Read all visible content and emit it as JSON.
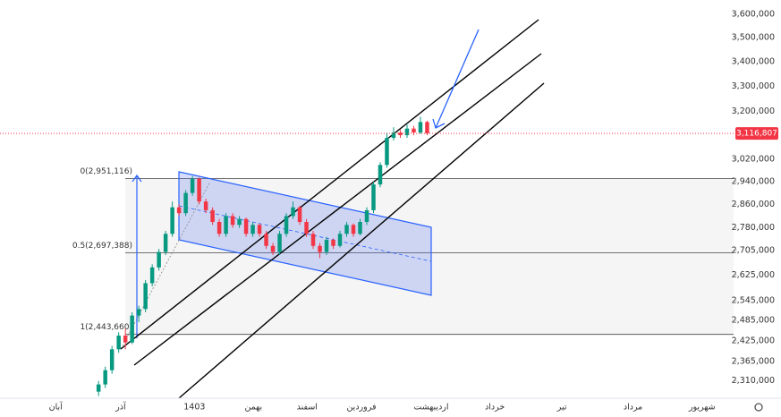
{
  "chart_data": {
    "type": "candlestick",
    "log_scale": true,
    "ylim": [
      2262000,
      3663000
    ],
    "xlim": [
      -14.7,
      94.7
    ],
    "up_color": "#089981",
    "down_color": "#f23645",
    "yticks": [
      {
        "value": 3600000,
        "label": "3,600,000"
      },
      {
        "value": 3500000,
        "label": "3,500,000"
      },
      {
        "value": 3400000,
        "label": "3,400,000"
      },
      {
        "value": 3300000,
        "label": "3,300,000"
      },
      {
        "value": 3200000,
        "label": "3,200,000"
      },
      {
        "value": 3020000,
        "label": "3,020,000"
      },
      {
        "value": 2940000,
        "label": "2,940,000"
      },
      {
        "value": 2860000,
        "label": "2,860,000"
      },
      {
        "value": 2780000,
        "label": "2,780,000"
      },
      {
        "value": 2705000,
        "label": "2,705,000"
      },
      {
        "value": 2625000,
        "label": "2,625,000"
      },
      {
        "value": 2545000,
        "label": "2,545,000"
      },
      {
        "value": 2485000,
        "label": "2,485,000"
      },
      {
        "value": 2425000,
        "label": "2,425,000"
      },
      {
        "value": 2365000,
        "label": "2,365,000"
      },
      {
        "value": 2310000,
        "label": "2,310,000"
      }
    ],
    "xticks": [
      {
        "value": -6.4,
        "label": "آبان"
      },
      {
        "value": 3.3,
        "label": "آذر"
      },
      {
        "value": 14.3,
        "label": "1403"
      },
      {
        "value": 23.1,
        "label": "بهمن"
      },
      {
        "value": 31.1,
        "label": "اسفند"
      },
      {
        "value": 39.2,
        "label": "فروردین"
      },
      {
        "value": 49.6,
        "label": "اردیبهشت"
      },
      {
        "value": 59.1,
        "label": "خرداد"
      },
      {
        "value": 69.1,
        "label": "تیر"
      },
      {
        "value": 79.7,
        "label": "مرداد"
      },
      {
        "value": 90,
        "label": "شهریور"
      }
    ],
    "last_price": {
      "value": 3116807,
      "label": "3,116,807",
      "color": "#f23645"
    },
    "fib_levels": [
      {
        "value": 2951116,
        "label": "0(2,951,116)"
      },
      {
        "value": 2697388,
        "label": "0.5(2,697,388)"
      },
      {
        "value": 2443660,
        "label": "1(2,443,660)"
      }
    ],
    "candles": [
      [
        2280000,
        2310000,
        2268000,
        2300000
      ],
      [
        2300000,
        2350000,
        2290000,
        2340000
      ],
      [
        2340000,
        2410000,
        2330000,
        2400000
      ],
      [
        2400000,
        2450000,
        2390000,
        2440000
      ],
      [
        2440000,
        2460000,
        2400000,
        2420000
      ],
      [
        2420000,
        2510000,
        2415000,
        2500000
      ],
      [
        2500000,
        2530000,
        2480000,
        2520000
      ],
      [
        2520000,
        2610000,
        2510000,
        2600000
      ],
      [
        2600000,
        2660000,
        2590000,
        2650000
      ],
      [
        2650000,
        2710000,
        2640000,
        2700000
      ],
      [
        2700000,
        2770000,
        2690000,
        2760000
      ],
      [
        2760000,
        2870000,
        2750000,
        2850000
      ],
      [
        2850000,
        2860000,
        2820000,
        2830000
      ],
      [
        2830000,
        2910000,
        2820000,
        2900000
      ],
      [
        2900000,
        2960000,
        2890000,
        2950000
      ],
      [
        2950000,
        2955000,
        2860000,
        2870000
      ],
      [
        2870000,
        2880000,
        2830000,
        2840000
      ],
      [
        2840000,
        2850000,
        2790000,
        2800000
      ],
      [
        2800000,
        2810000,
        2750000,
        2760000
      ],
      [
        2760000,
        2830000,
        2750000,
        2820000
      ],
      [
        2820000,
        2830000,
        2780000,
        2790000
      ],
      [
        2790000,
        2820000,
        2780000,
        2810000
      ],
      [
        2810000,
        2815000,
        2750000,
        2760000
      ],
      [
        2760000,
        2800000,
        2750000,
        2790000
      ],
      [
        2790000,
        2795000,
        2750000,
        2760000
      ],
      [
        2760000,
        2770000,
        2710000,
        2720000
      ],
      [
        2720000,
        2730000,
        2690000,
        2700000
      ],
      [
        2700000,
        2770000,
        2690000,
        2760000
      ],
      [
        2760000,
        2830000,
        2750000,
        2820000
      ],
      [
        2820000,
        2870000,
        2810000,
        2850000
      ],
      [
        2850000,
        2855000,
        2790000,
        2800000
      ],
      [
        2800000,
        2810000,
        2750000,
        2760000
      ],
      [
        2760000,
        2770000,
        2710000,
        2720000
      ],
      [
        2720000,
        2730000,
        2680000,
        2700000
      ],
      [
        2700000,
        2750000,
        2690000,
        2740000
      ],
      [
        2740000,
        2745000,
        2710000,
        2720000
      ],
      [
        2720000,
        2770000,
        2715000,
        2760000
      ],
      [
        2760000,
        2800000,
        2750000,
        2790000
      ],
      [
        2790000,
        2795000,
        2750000,
        2760000
      ],
      [
        2760000,
        2810000,
        2755000,
        2800000
      ],
      [
        2800000,
        2850000,
        2790000,
        2840000
      ],
      [
        2840000,
        2940000,
        2830000,
        2930000
      ],
      [
        2930000,
        3010000,
        2920000,
        3000000
      ],
      [
        3000000,
        3120000,
        2990000,
        3100000
      ],
      [
        3100000,
        3140000,
        3090000,
        3120000
      ],
      [
        3120000,
        3130000,
        3100000,
        3110000
      ],
      [
        3110000,
        3150000,
        3100000,
        3135000
      ],
      [
        3135000,
        3145000,
        3110000,
        3120000
      ],
      [
        3120000,
        3180000,
        3115000,
        3160000
      ],
      [
        3160000,
        3165000,
        3110000,
        3116807
      ]
    ]
  }
}
